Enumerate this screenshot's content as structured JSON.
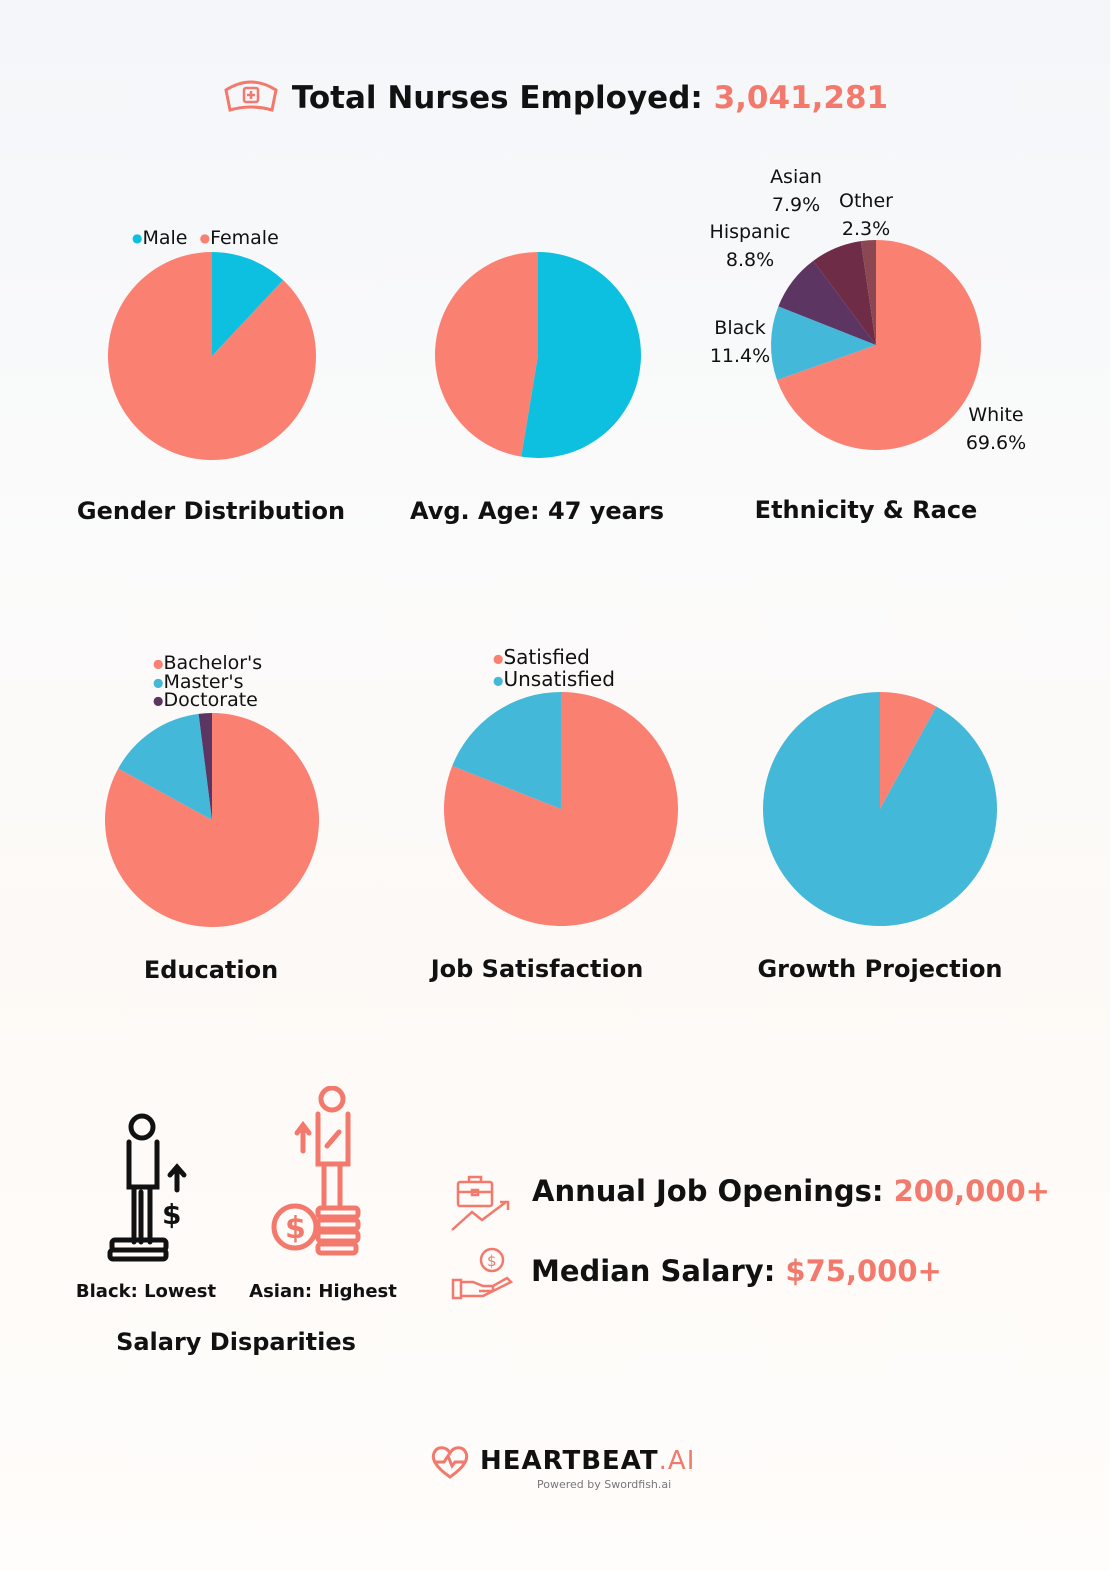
{
  "header": {
    "label": "Total Nurses Employed:",
    "value": "3,041,281",
    "icon": "nurse-cap-icon"
  },
  "colors": {
    "salmon": "#fa8072",
    "cyan": "#0ec0e0",
    "blue": "#43b8d8",
    "purple": "#5d3563",
    "plum": "#6f2c47",
    "mauve": "#8b4852",
    "accent": "#f2796b"
  },
  "chart_data": [
    {
      "type": "pie",
      "title": "Gender Distribution",
      "legend": [
        "Male",
        "Female"
      ],
      "categories": [
        "Male",
        "Female"
      ],
      "values": [
        12,
        88
      ],
      "colors": [
        "#0ec0e0",
        "#fa8072"
      ]
    },
    {
      "type": "pie",
      "title": "Avg. Age: 47 years",
      "values": [
        52.6,
        47.4
      ],
      "colors": [
        "#0ec0e0",
        "#fa8072"
      ]
    },
    {
      "type": "pie",
      "title": "Ethnicity & Race",
      "categories": [
        "White",
        "Black",
        "Hispanic",
        "Asian",
        "Other"
      ],
      "values": [
        69.6,
        11.4,
        8.8,
        7.9,
        2.3
      ],
      "labels": [
        "69.6%",
        "11.4%",
        "8.8%",
        "7.9%",
        "2.3%"
      ],
      "colors": [
        "#fa8072",
        "#43b8d8",
        "#5d3563",
        "#6f2c47",
        "#8b4852"
      ]
    },
    {
      "type": "pie",
      "title": "Education",
      "legend": [
        "Bachelor's",
        "Master's",
        "Doctorate"
      ],
      "categories": [
        "Bachelor's",
        "Master's",
        "Doctorate"
      ],
      "values": [
        83,
        15,
        2
      ],
      "colors": [
        "#fa8072",
        "#43b8d8",
        "#5d3563"
      ]
    },
    {
      "type": "pie",
      "title": "Job Satisfaction",
      "legend": [
        "Satisfied",
        "Unsatisfied"
      ],
      "categories": [
        "Satisfied",
        "Unsatisfied"
      ],
      "values": [
        81,
        19
      ],
      "colors": [
        "#fa8072",
        "#43b8d8"
      ]
    },
    {
      "type": "pie",
      "title": "Growth Projection",
      "values": [
        8,
        92
      ],
      "colors": [
        "#fa8072",
        "#43b8d8"
      ]
    }
  ],
  "salary": {
    "title": "Salary Disparities",
    "low": "Black: Lowest",
    "high": "Asian: Highest"
  },
  "stats": [
    {
      "label": "Annual Job Openings:",
      "value": "200,000+",
      "icon": "briefcase-growth-icon"
    },
    {
      "label": "Median Salary:",
      "value": "$75,000+",
      "icon": "hand-money-icon"
    }
  ],
  "footer": {
    "brand": "HEARTBEAT",
    "brand_suffix": ".AI",
    "tagline": "Powered by Swordfish.ai"
  }
}
